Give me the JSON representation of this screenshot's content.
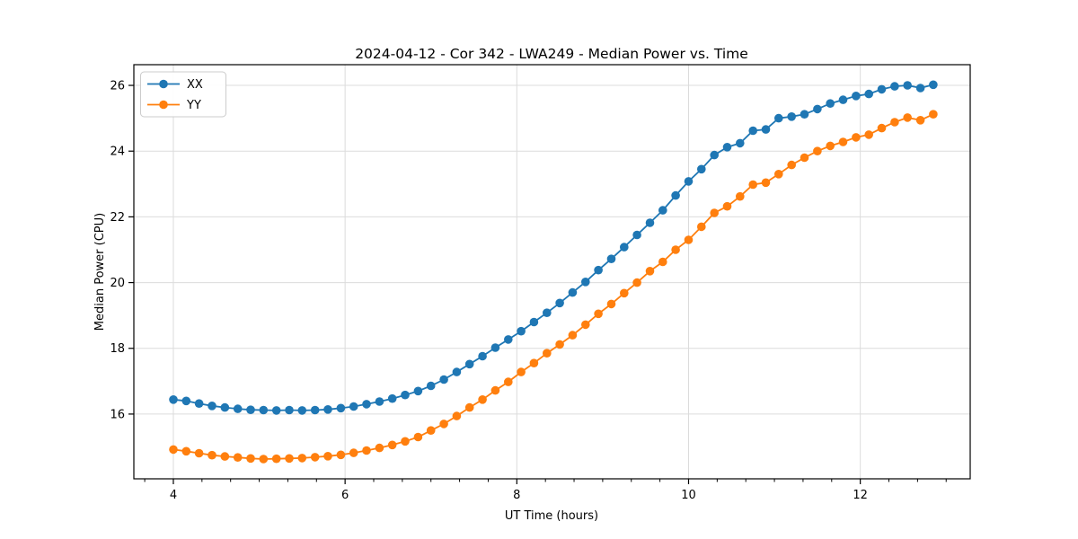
{
  "chart_data": {
    "type": "line",
    "title": "2024-04-12 - Cor 342 - LWA249 - Median Power vs. Time",
    "xlabel": "UT Time (hours)",
    "ylabel": "Median Power (CPU)",
    "xlim": [
      3.54,
      13.28
    ],
    "ylim": [
      14.03,
      26.63
    ],
    "xticks": [
      4,
      6,
      8,
      10,
      12
    ],
    "xtick_labels": [
      "4",
      "6",
      "8",
      "10",
      "12"
    ],
    "x_minor_tick_step": 0.3333333,
    "yticks": [
      16,
      18,
      20,
      22,
      24,
      26
    ],
    "ytick_labels": [
      "16",
      "18",
      "20",
      "22",
      "24",
      "26"
    ],
    "grid": true,
    "legend": {
      "position": "upper-left",
      "entries": [
        "XX",
        "YY"
      ]
    },
    "x": [
      4.0,
      4.15,
      4.3,
      4.45,
      4.6,
      4.75,
      4.9,
      5.05,
      5.2,
      5.35,
      5.5,
      5.65,
      5.8,
      5.95,
      6.1,
      6.25,
      6.4,
      6.55,
      6.7,
      6.85,
      7.0,
      7.15,
      7.3,
      7.45,
      7.6,
      7.75,
      7.9,
      8.05,
      8.2,
      8.35,
      8.5,
      8.65,
      8.8,
      8.95,
      9.1,
      9.25,
      9.4,
      9.55,
      9.7,
      9.85,
      10.0,
      10.15,
      10.3,
      10.45,
      10.6,
      10.75,
      10.9,
      11.05,
      11.2,
      11.35,
      11.5,
      11.65,
      11.8,
      11.95,
      12.1,
      12.25,
      12.4,
      12.55,
      12.7,
      12.85
    ],
    "series": [
      {
        "name": "XX",
        "color": "#1f77b4",
        "marker": "circle",
        "values": [
          16.44,
          16.4,
          16.32,
          16.25,
          16.2,
          16.16,
          16.13,
          16.12,
          16.11,
          16.12,
          16.11,
          16.12,
          16.14,
          16.18,
          16.23,
          16.3,
          16.38,
          16.47,
          16.58,
          16.7,
          16.86,
          17.05,
          17.28,
          17.52,
          17.76,
          18.02,
          18.27,
          18.52,
          18.8,
          19.08,
          19.38,
          19.7,
          20.02,
          20.38,
          20.72,
          21.08,
          21.45,
          21.82,
          22.2,
          22.65,
          23.08,
          23.45,
          23.88,
          24.12,
          24.24,
          24.62,
          24.66,
          25.0,
          25.05,
          25.12,
          25.28,
          25.45,
          25.56,
          25.68,
          25.74,
          25.88,
          25.97,
          26.0,
          25.92,
          26.02
        ]
      },
      {
        "name": "YY",
        "color": "#ff7f0e",
        "marker": "circle",
        "values": [
          14.92,
          14.87,
          14.81,
          14.75,
          14.71,
          14.68,
          14.65,
          14.63,
          14.64,
          14.65,
          14.66,
          14.69,
          14.72,
          14.76,
          14.82,
          14.89,
          14.97,
          15.06,
          15.17,
          15.3,
          15.5,
          15.7,
          15.94,
          16.2,
          16.44,
          16.72,
          16.98,
          17.28,
          17.55,
          17.85,
          18.12,
          18.4,
          18.72,
          19.05,
          19.35,
          19.68,
          20.0,
          20.35,
          20.63,
          21.0,
          21.3,
          21.7,
          22.12,
          22.32,
          22.62,
          22.98,
          23.04,
          23.3,
          23.58,
          23.8,
          24.0,
          24.16,
          24.28,
          24.42,
          24.5,
          24.7,
          24.88,
          25.02,
          24.94,
          25.12
        ]
      }
    ]
  },
  "style": {
    "grid_color": "#dcdcdc",
    "spine_color": "#000000",
    "legend_border_color": "#cccccc",
    "background_color": "#ffffff"
  }
}
